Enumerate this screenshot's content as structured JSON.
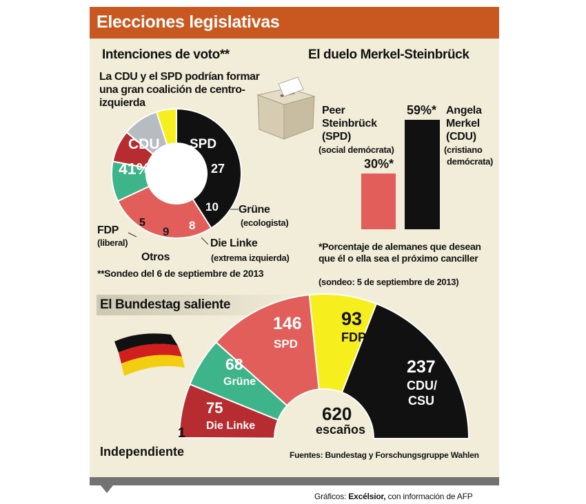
{
  "header": {
    "title": "Elecciones legislativas"
  },
  "colors": {
    "CDU": "#111111",
    "SPD": "#e15e5b",
    "Grune": "#3eb48a",
    "DieLinke": "#b62c30",
    "Otros": "#b6bcc0",
    "FDP": "#f7ee1e"
  },
  "left_panel": {
    "title": "Intenciones de voto**",
    "subtitle": "La CDU y el SPD podrían formar una gran coalición de centro-izquierda",
    "footnote": "**Sondeo del 6 de septiembre de 2013",
    "labels": {
      "cdu_name": "CDU",
      "cdu_value": "41%",
      "spd_name": "SPD",
      "spd_value": "27",
      "grune_value": "10",
      "die_linke_value": "8",
      "otros_value": "9",
      "fdp_value": "5",
      "grune_name": "Grüne",
      "grune_desc": "(ecologista)",
      "die_linke_name": "Die Linke",
      "die_linke_desc": "(extrema izquierda)",
      "otros_name": "Otros",
      "fdp_name": "FDP",
      "fdp_desc": "(liberal)"
    }
  },
  "right_panel": {
    "title": "El duelo Merkel-Steinbrück",
    "steinbruck_label": "30%*",
    "merkel_label": "59%*",
    "steinbruck_name_1": "Peer",
    "steinbruck_name_2": "Steinbrück",
    "steinbruck_name_3": "(SPD)",
    "steinbruck_desc": "(social demócrata)",
    "merkel_name_1": "Angela",
    "merkel_name_2": "Merkel",
    "merkel_name_3": "(CDU)",
    "merkel_desc_1": "(cristiano",
    "merkel_desc_2": "demócrata)",
    "footnote": "*Porcentaje de alemanes que desean que él o ella sea el próximo canciller",
    "footnote_sub": "(sondeo: 5 de septiembre de 2013)"
  },
  "bottom_panel": {
    "title": "El Bundestag saliente",
    "total_value": "620",
    "total_label": "escaños",
    "labels": {
      "cdu_value": "237",
      "cdu_name_1": "CDU/",
      "cdu_name_2": "CSU",
      "fdp_value": "93",
      "fdp_name": "FDP",
      "spd_value": "146",
      "spd_name": "SPD",
      "grune_value": "68",
      "grune_name": "Grüne",
      "die_linke_value": "75",
      "die_linke_name": "Die Linke",
      "indep_value": "1",
      "indep_name": "Independiente"
    },
    "sources": "Fuentes: Bundestag y Forschungsgruppe Wahlen"
  },
  "credit": {
    "prefix": "Gráficos: ",
    "brand": "Excélsior,",
    "suffix": " con información de AFP"
  },
  "chart_data": [
    {
      "type": "pie",
      "title": "Intenciones de voto**",
      "categories": [
        "CDU",
        "SPD",
        "Grüne",
        "Die Linke",
        "Otros",
        "FDP"
      ],
      "values": [
        41,
        27,
        10,
        8,
        9,
        5
      ],
      "unit": "%"
    },
    {
      "type": "bar",
      "title": "El duelo Merkel-Steinbrück",
      "categories": [
        "Peer Steinbrück (SPD)",
        "Angela Merkel (CDU)"
      ],
      "values": [
        30,
        59
      ],
      "unit": "%"
    },
    {
      "type": "pie",
      "title": "El Bundestag saliente",
      "categories": [
        "Independiente",
        "Die Linke",
        "Grüne",
        "SPD",
        "FDP",
        "CDU/CSU"
      ],
      "values": [
        1,
        75,
        68,
        146,
        93,
        237
      ],
      "total": 620,
      "unit": "escaños"
    }
  ]
}
